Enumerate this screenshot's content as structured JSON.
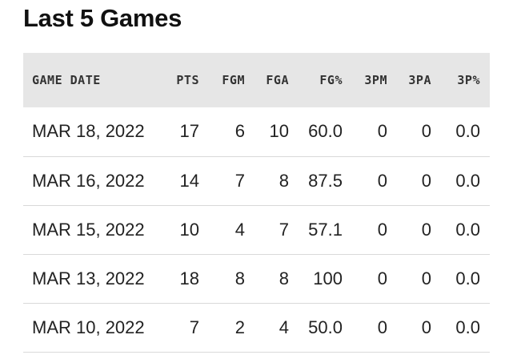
{
  "page_title": "Last 5 Games",
  "table": {
    "headers": {
      "game_date": "GAME DATE",
      "pts": "PTS",
      "fgm": "FGM",
      "fga": "FGA",
      "fg_pct": "FG%",
      "three_pm": "3PM",
      "three_pa": "3PA",
      "three_pct": "3P%"
    },
    "rows": [
      {
        "game_date": "MAR 18, 2022",
        "pts": "17",
        "fgm": "6",
        "fga": "10",
        "fg_pct": "60.0",
        "three_pm": "0",
        "three_pa": "0",
        "three_pct": "0.0"
      },
      {
        "game_date": "MAR 16, 2022",
        "pts": "14",
        "fgm": "7",
        "fga": "8",
        "fg_pct": "87.5",
        "three_pm": "0",
        "three_pa": "0",
        "three_pct": "0.0"
      },
      {
        "game_date": "MAR 15, 2022",
        "pts": "10",
        "fgm": "4",
        "fga": "7",
        "fg_pct": "57.1",
        "three_pm": "0",
        "three_pa": "0",
        "three_pct": "0.0"
      },
      {
        "game_date": "MAR 13, 2022",
        "pts": "18",
        "fgm": "8",
        "fga": "8",
        "fg_pct": "100",
        "three_pm": "0",
        "three_pa": "0",
        "three_pct": "0.0"
      },
      {
        "game_date": "MAR 10, 2022",
        "pts": "7",
        "fgm": "2",
        "fga": "4",
        "fg_pct": "50.0",
        "three_pm": "0",
        "three_pa": "0",
        "three_pct": "0.0"
      }
    ]
  },
  "colors": {
    "link": "#1b6db3",
    "header_bg": "#e6e6e6",
    "row_border": "#d9d9d9"
  }
}
